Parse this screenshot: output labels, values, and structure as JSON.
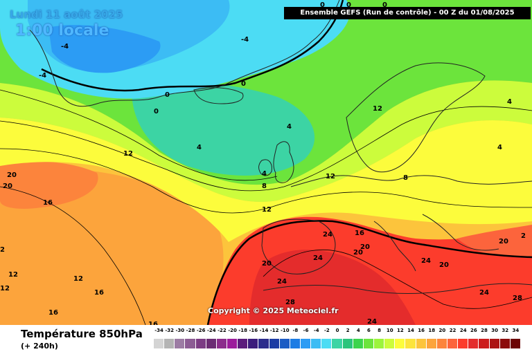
{
  "header": {
    "date_label": "Lundi 11 août 2025",
    "time_label": "1:00 locale",
    "run_label": "Ensemble GEFS  (Run de contrôle)  -  00 Z du 01/08/2025"
  },
  "copyright": "Copyright © 2025 Meteociel.fr",
  "legend": {
    "title": "Température 850hPa",
    "subtitle": "(+ 240h)",
    "scale_values": [
      "-34",
      "-32",
      "-30",
      "-28",
      "-26",
      "-24",
      "-22",
      "-20",
      "-18",
      "-16",
      "-14",
      "-12",
      "-10",
      "-8",
      "-6",
      "-4",
      "-2",
      "0",
      "2",
      "4",
      "6",
      "8",
      "10",
      "12",
      "14",
      "16",
      "18",
      "20",
      "22",
      "24",
      "26",
      "28",
      "30",
      "32",
      "34"
    ],
    "scale_colors": [
      "#d4d4d4",
      "#b4b4b4",
      "#9c7ca4",
      "#8c5c94",
      "#7c3c84",
      "#6c2c74",
      "#8c2c8c",
      "#9c1c9c",
      "#5c1c7c",
      "#3c1c7c",
      "#2c2c8c",
      "#1c3ca4",
      "#1c5cc4",
      "#1c7ce4",
      "#2c9cf4",
      "#3cbcf4",
      "#4cdcf4",
      "#3cd4a4",
      "#2cc47c",
      "#3cd44c",
      "#6ce43c",
      "#9cf43c",
      "#ccfc3c",
      "#fcfc3c",
      "#fce43c",
      "#fcc43c",
      "#fca43c",
      "#fc843c",
      "#fc643c",
      "#fc3c2c",
      "#e42c2c",
      "#cc1c1c",
      "#ac1414",
      "#8c0c0c",
      "#6c0404"
    ]
  },
  "map_labels": [
    {
      "text": "-4"
    },
    {
      "text": "-4"
    },
    {
      "text": "-4"
    },
    {
      "text": "0"
    },
    {
      "text": "0"
    },
    {
      "text": "0"
    },
    {
      "text": "0"
    },
    {
      "text": "0"
    },
    {
      "text": "0"
    },
    {
      "text": "4"
    },
    {
      "text": "4"
    },
    {
      "text": "4"
    },
    {
      "text": "4"
    },
    {
      "text": "4"
    },
    {
      "text": "8"
    },
    {
      "text": "8"
    },
    {
      "text": "12"
    },
    {
      "text": "12"
    },
    {
      "text": "12"
    },
    {
      "text": "12"
    },
    {
      "text": "12"
    },
    {
      "text": "12"
    },
    {
      "text": "12"
    },
    {
      "text": "16"
    },
    {
      "text": "16"
    },
    {
      "text": "16"
    },
    {
      "text": "16"
    },
    {
      "text": "16"
    },
    {
      "text": "20"
    },
    {
      "text": "20"
    },
    {
      "text": "20"
    },
    {
      "text": "20"
    },
    {
      "text": "20"
    },
    {
      "text": "20"
    },
    {
      "text": "20"
    },
    {
      "text": "24"
    },
    {
      "text": "24"
    },
    {
      "text": "24"
    },
    {
      "text": "24"
    },
    {
      "text": "24"
    },
    {
      "text": "24"
    },
    {
      "text": "28"
    },
    {
      "text": "28"
    },
    {
      "text": "2"
    },
    {
      "text": "2"
    }
  ]
}
